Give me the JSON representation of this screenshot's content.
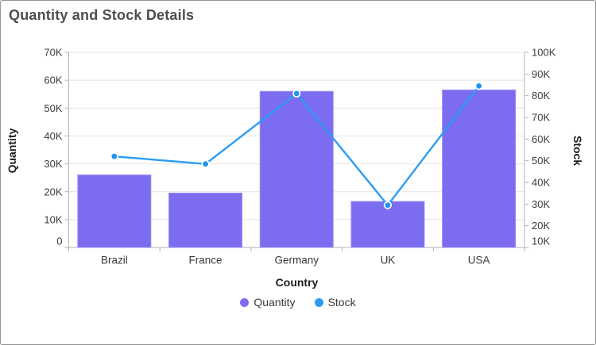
{
  "header": {
    "title": "Quantity and Stock Details"
  },
  "chart_data": {
    "type": "combo-column-line",
    "title": "Quantity and Stock Details",
    "categories": [
      "Brazil",
      "France",
      "Germany",
      "UK",
      "USA"
    ],
    "series": [
      {
        "name": "Quantity",
        "type": "bar",
        "axis": "left",
        "values": [
          26000,
          19500,
          56000,
          16500,
          56500
        ],
        "color": "#7C6CEF",
        "border_color": "#9B8DF2"
      },
      {
        "name": "Stock",
        "type": "line",
        "axis": "right",
        "values": [
          52000,
          48500,
          81000,
          29500,
          84500
        ],
        "color": "#2B9DF3",
        "marker_color": "#1F97F0",
        "marker_ring_color": "#FFFFFF"
      }
    ],
    "xlabel": "Country",
    "y_left": {
      "label": "Quantity",
      "min": 0,
      "max": 70000,
      "step": 10000,
      "tick_labels": [
        "0",
        "10K",
        "20K",
        "30K",
        "40K",
        "50K",
        "60K",
        "70K"
      ]
    },
    "y_right": {
      "label": "Stock",
      "min": 10000,
      "max": 100000,
      "step": 10000,
      "tick_labels": [
        "10K",
        "20K",
        "30K",
        "40K",
        "50K",
        "60K",
        "70K",
        "80K",
        "90K",
        "100K"
      ]
    },
    "legend": {
      "position": "bottom",
      "items": [
        "Quantity",
        "Stock"
      ]
    },
    "grid": "horizontal-only"
  },
  "colors": {
    "card_border": "#939393",
    "background": "#ffffff",
    "gridline": "#e4e4e4",
    "axis_line": "#b3b3b3",
    "tick_label": "#3c3c3c",
    "category_label": "#3a3a3a",
    "axis_title": "#1c1c1c",
    "chart_title": "#4e4e4e",
    "legend_label": "#3a3a3a"
  }
}
